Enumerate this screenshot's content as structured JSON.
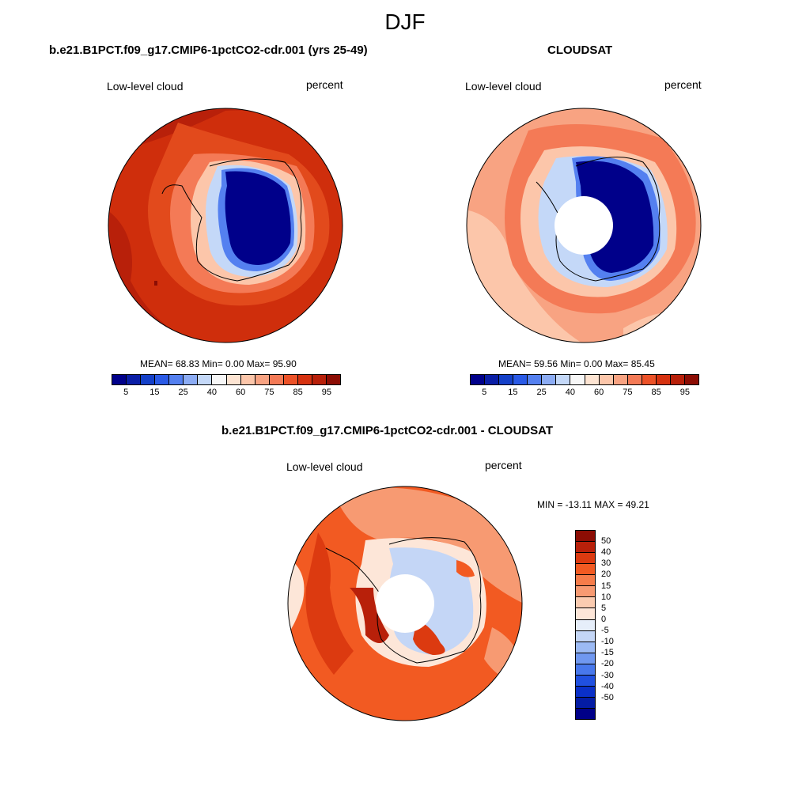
{
  "title": "DJF",
  "panels": {
    "model": {
      "title": "b.e21.B1PCT.f09_g17.CMIP6-1pctCO2-cdr.001 (yrs 25-49)",
      "left_label": "Low-level cloud",
      "right_label": "percent",
      "stats": "MEAN=  68.83  Min=   0.00  Max=  95.90"
    },
    "obs": {
      "title": "CLOUDSAT",
      "left_label": "Low-level cloud",
      "right_label": "percent",
      "stats": "MEAN=  59.56  Min=   0.00  Max=  85.45"
    },
    "diff": {
      "title": "b.e21.B1PCT.f09_g17.CMIP6-1pctCO2-cdr.001 - CLOUDSAT",
      "left_label": "Low-level cloud",
      "right_label": "percent",
      "stats": "MIN = -13.11 MAX =  49.21"
    }
  },
  "colorbar_abs": {
    "colors": [
      "#00008a",
      "#0a1ea6",
      "#1440c8",
      "#2a5ae6",
      "#5480f0",
      "#8cacf4",
      "#c4d8f8",
      "#f7f7f7",
      "#fde4d2",
      "#fcc6aa",
      "#f8a382",
      "#f47a56",
      "#ec5228",
      "#d63210",
      "#b8200a",
      "#8c0d04"
    ],
    "labels": [
      "5",
      "15",
      "25",
      "40",
      "60",
      "75",
      "85",
      "95"
    ]
  },
  "colorbar_diff": {
    "colors": [
      "#8c0d04",
      "#b8200a",
      "#dc3a10",
      "#f25a22",
      "#f67c4a",
      "#f79a72",
      "#facbb0",
      "#fde6d8",
      "#e6eefa",
      "#c4d6f6",
      "#9cbaf4",
      "#7098f0",
      "#4878ec",
      "#2050e0",
      "#0a30c8",
      "#041ca4",
      "#000088"
    ],
    "labels": [
      "50",
      "40",
      "30",
      "20",
      "15",
      "10",
      "5",
      "0",
      "-5",
      "-10",
      "-15",
      "-20",
      "-30",
      "-40",
      "-50"
    ]
  }
}
